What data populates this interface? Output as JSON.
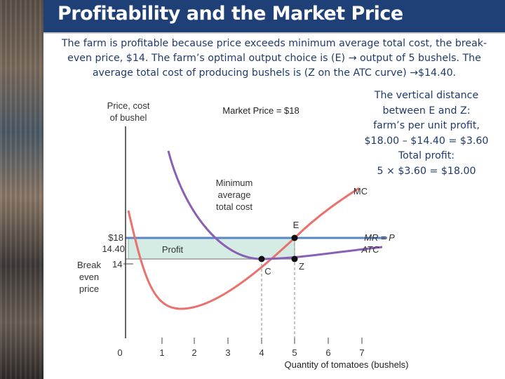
{
  "title": "Profitability and the Market Price",
  "intro_lines": [
    "The farm is profitable because price exceeds minimum average total cost, the break-",
    "even price, $14.  The farm’s optimal output choice is (E) → output of 5 bushels.  The",
    "average total cost of producing bushels is  (Z on the ATC curve) →$14.40."
  ],
  "callout_lines": [
    "The vertical distance",
    "between E and Z:",
    "farm’s per unit profit,",
    "$18.00 – $14.40 = $3.60",
    "Total profit:",
    "5 × $3.60 = $18.00"
  ],
  "diagram": {
    "y_axis_label": [
      "Price, cost",
      "of bushel"
    ],
    "x_axis_label": "Quantity of tomatoes (bushels)",
    "market_price_label": "Market Price = $18",
    "min_atc_label": [
      "Minimum",
      "average",
      "total cost"
    ],
    "breakeven_label": [
      "Break",
      "even",
      "price"
    ],
    "y_tick_labels": [
      "$18",
      "14.40",
      "14"
    ],
    "x_tick_labels": [
      "0",
      "1",
      "2",
      "3",
      "4",
      "5",
      "6",
      "7"
    ],
    "curve_labels": {
      "mc": "MC",
      "mr": "MR = P",
      "atc": "ATC"
    },
    "point_labels": {
      "e": "E",
      "z": "Z",
      "c": "C"
    },
    "profit_label": "Profit",
    "market_price": 18,
    "atc_at_optimum": 14.4,
    "breakeven_price": 14,
    "optimal_output": 5,
    "min_atc_output": 4,
    "colors": {
      "mc": "#e8736c",
      "atc": "#8a5fb5",
      "mr": "#5a86c6",
      "profit": "#d4ece4",
      "title_bar": "#1f3f77",
      "text": "#1f3a6b"
    }
  }
}
